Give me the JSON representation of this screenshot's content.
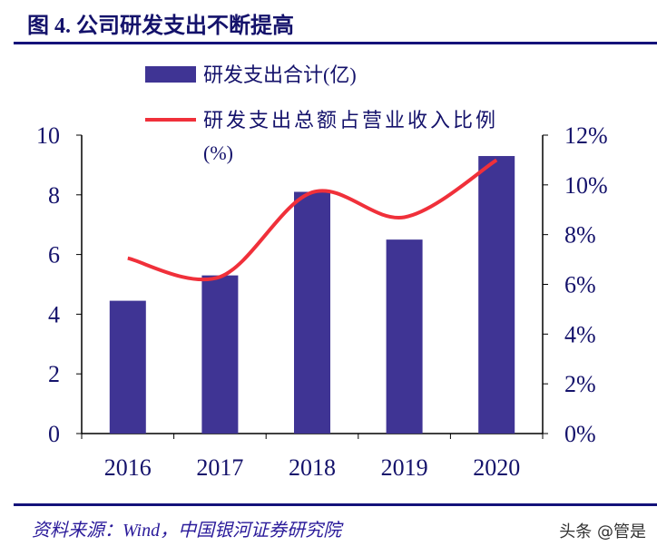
{
  "title": "图 4. 公司研发支出不断提高",
  "source": "资料来源：Wind，中国银河证券研究院",
  "watermark": "头条 @管是",
  "chart_data": {
    "type": "bar+line",
    "categories": [
      "2016",
      "2017",
      "2018",
      "2019",
      "2020"
    ],
    "series": [
      {
        "name": "研发支出合计(亿)",
        "type": "bar",
        "axis": "left",
        "color": "#3f3494",
        "values": [
          4.45,
          5.3,
          8.1,
          6.5,
          9.3
        ]
      },
      {
        "name": "研发支出总额占营业收入比例(%)",
        "type": "line",
        "axis": "right",
        "color": "#f0303a",
        "values": [
          7.05,
          6.3,
          9.7,
          8.7,
          11.0
        ]
      }
    ],
    "left_axis": {
      "ylim": [
        0,
        10
      ],
      "ticks": [
        "0",
        "2",
        "4",
        "6",
        "8",
        "10"
      ]
    },
    "right_axis": {
      "ylim": [
        0,
        12
      ],
      "ticks": [
        "0%",
        "2%",
        "4%",
        "6%",
        "8%",
        "10%",
        "12%"
      ]
    },
    "legend": {
      "placement": "top",
      "bar_label": "研发支出合计(亿)",
      "line_label_1": "研发支出总额占营业收入比例",
      "line_label_2": "(%)"
    },
    "grid": false
  }
}
